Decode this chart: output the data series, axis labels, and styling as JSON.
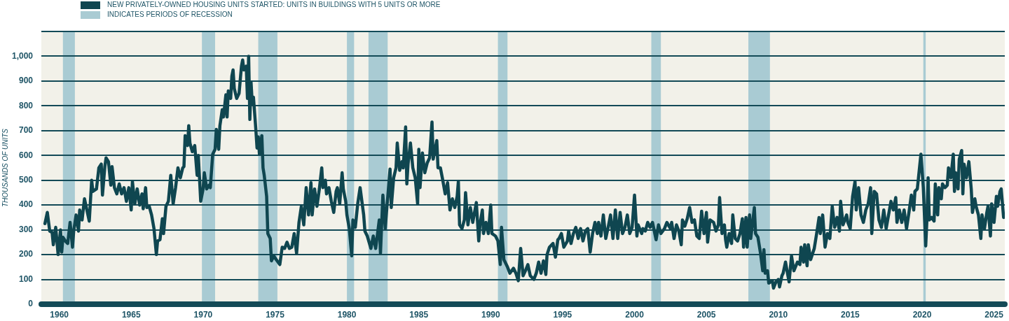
{
  "chart_data": {
    "type": "line",
    "ylabel": "THOUSANDS OF UNITS",
    "x": [
      "1959-01",
      "1959-03",
      "1959-05",
      "1959-07",
      "1959-08",
      "1959-10",
      "1959-12",
      "1960-02",
      "1960-03",
      "1960-04",
      "1960-06",
      "1960-08",
      "1960-10",
      "1960-12",
      "1961-01",
      "1961-03",
      "1961-05",
      "1961-06",
      "1961-08",
      "1961-10",
      "1961-12",
      "1962-02",
      "1962-04",
      "1962-05",
      "1962-08",
      "1962-10",
      "1962-12",
      "1963-01",
      "1963-03",
      "1963-04",
      "1963-06",
      "1963-08",
      "1963-09",
      "1963-11",
      "1964-01",
      "1964-03",
      "1964-05",
      "1964-07",
      "1964-09",
      "1964-11",
      "1965-01",
      "1965-02",
      "1965-04",
      "1965-06",
      "1965-08",
      "1965-10",
      "1965-11",
      "1966-01",
      "1966-02",
      "1966-04",
      "1966-06",
      "1966-08",
      "1966-10",
      "1966-11",
      "1967-01",
      "1967-03",
      "1967-04",
      "1967-06",
      "1967-08",
      "1967-10",
      "1967-12",
      "1968-02",
      "1968-04",
      "1968-06",
      "1968-08",
      "1968-09",
      "1968-10",
      "1968-12",
      "1969-01",
      "1969-02",
      "1969-04",
      "1969-06",
      "1969-08",
      "1969-09",
      "1969-11",
      "1970-01",
      "1970-02",
      "1970-04",
      "1970-06",
      "1970-07",
      "1970-09",
      "1970-11",
      "1970-12",
      "1971-02",
      "1971-03",
      "1971-05",
      "1971-06",
      "1971-08",
      "1971-09",
      "1971-10",
      "1971-12",
      "1972-01",
      "1972-02",
      "1972-03",
      "1972-05",
      "1972-07",
      "1972-09",
      "1972-10",
      "1972-11",
      "1973-01",
      "1973-02",
      "1973-03",
      "1973-04",
      "1973-05",
      "1973-06",
      "1973-07",
      "1973-09",
      "1973-10",
      "1973-11",
      "1973-12",
      "1974-02",
      "1974-03",
      "1974-04",
      "1974-06",
      "1974-07",
      "1974-09",
      "1974-10",
      "1974-12",
      "1975-02",
      "1975-05",
      "1975-07",
      "1975-09",
      "1975-11",
      "1976-01",
      "1976-03",
      "1976-05",
      "1976-07",
      "1976-09",
      "1976-11",
      "1977-01",
      "1977-03",
      "1977-05",
      "1977-07",
      "1977-08",
      "1977-10",
      "1977-12",
      "1978-02",
      "1978-04",
      "1978-05",
      "1978-07",
      "1978-08",
      "1978-10",
      "1978-12",
      "1979-02",
      "1979-04",
      "1979-05",
      "1979-07",
      "1979-09",
      "1979-10",
      "1979-12",
      "1980-01",
      "1980-03",
      "1980-05",
      "1980-06",
      "1980-08",
      "1980-10",
      "1980-12",
      "1981-03",
      "1981-04",
      "1981-06",
      "1981-09",
      "1981-11",
      "1982-01",
      "1982-04",
      "1982-05",
      "1982-07",
      "1982-09",
      "1982-10",
      "1983-01",
      "1983-02",
      "1983-04",
      "1983-06",
      "1983-07",
      "1983-09",
      "1983-11",
      "1983-12",
      "1984-02",
      "1984-03",
      "1984-04",
      "1984-06",
      "1984-08",
      "1984-10",
      "1984-12",
      "1985-01",
      "1985-02",
      "1985-04",
      "1985-06",
      "1985-08",
      "1985-10",
      "1985-12",
      "1986-01",
      "1986-04",
      "1986-05",
      "1986-07",
      "1986-09",
      "1986-11",
      "1987-01",
      "1987-03",
      "1987-05",
      "1987-07",
      "1987-09",
      "1987-10",
      "1987-11",
      "1988-01",
      "1988-03",
      "1988-04",
      "1988-06",
      "1988-08",
      "1988-10",
      "1989-01",
      "1989-03",
      "1989-04",
      "1989-06",
      "1989-07",
      "1989-09",
      "1989-11",
      "1990-01",
      "1990-02",
      "1990-05",
      "1990-07",
      "1990-09",
      "1990-10",
      "1990-12",
      "1991-03",
      "1991-05",
      "1991-08",
      "1991-10",
      "1991-12",
      "1992-01",
      "1992-02",
      "1992-04",
      "1992-06",
      "1992-08",
      "1992-10",
      "1993-01",
      "1993-03",
      "1993-05",
      "1993-07",
      "1993-09",
      "1993-11",
      "1993-12",
      "1994-02",
      "1994-05",
      "1994-07",
      "1994-09",
      "1994-10",
      "1994-12",
      "1995-02",
      "1995-05",
      "1995-06",
      "1995-08",
      "1995-10",
      "1995-12",
      "1996-02",
      "1996-04",
      "1996-06",
      "1996-08",
      "1996-10",
      "1996-12",
      "1997-02",
      "1997-04",
      "1997-06",
      "1997-07",
      "1997-09",
      "1997-11",
      "1998-01",
      "1998-03",
      "1998-05",
      "1998-07",
      "1998-09",
      "1998-11",
      "1999-01",
      "1999-03",
      "1999-05",
      "1999-07",
      "1999-09",
      "1999-11",
      "2000-01",
      "2000-03",
      "2000-04",
      "2000-07",
      "2000-08",
      "2000-10",
      "2000-12",
      "2001-02",
      "2001-04",
      "2001-07",
      "2001-09",
      "2001-11",
      "2002-02",
      "2002-04",
      "2002-07",
      "2002-08",
      "2002-10",
      "2002-12",
      "2003-02",
      "2003-04",
      "2003-05",
      "2003-07",
      "2003-09",
      "2003-11",
      "2004-01",
      "2004-03",
      "2004-05",
      "2004-07",
      "2004-09",
      "2004-11",
      "2005-01",
      "2005-02",
      "2005-04",
      "2005-07",
      "2005-09",
      "2005-11",
      "2005-12",
      "2006-02",
      "2006-04",
      "2006-05",
      "2006-06",
      "2006-08",
      "2006-10",
      "2006-11",
      "2007-01",
      "2007-03",
      "2007-05",
      "2007-07",
      "2007-08",
      "2007-10",
      "2007-11",
      "2008-01",
      "2008-02",
      "2008-05",
      "2008-06",
      "2008-08",
      "2008-10",
      "2008-12",
      "2009-01",
      "2009-02",
      "2009-04",
      "2009-05",
      "2009-08",
      "2009-09",
      "2009-11",
      "2010-01",
      "2010-02",
      "2010-04",
      "2010-05",
      "2010-07",
      "2010-09",
      "2010-10",
      "2010-12",
      "2011-02",
      "2011-05",
      "2011-07",
      "2011-08",
      "2011-10",
      "2011-11",
      "2012-01",
      "2012-02",
      "2012-04",
      "2012-07",
      "2012-09",
      "2012-11",
      "2012-12",
      "2013-02",
      "2013-04",
      "2013-06",
      "2013-08",
      "2013-10",
      "2013-12",
      "2014-02",
      "2014-04",
      "2014-05",
      "2014-07",
      "2014-10",
      "2014-11",
      "2015-01",
      "2015-03",
      "2015-05",
      "2015-06",
      "2015-08",
      "2015-10",
      "2015-12",
      "2016-02",
      "2016-04",
      "2016-06",
      "2016-07",
      "2016-09",
      "2016-11",
      "2017-01",
      "2017-03",
      "2017-05",
      "2017-07",
      "2017-09",
      "2017-11",
      "2018-01",
      "2018-03",
      "2018-04",
      "2018-06",
      "2018-08",
      "2018-10",
      "2018-12",
      "2019-02",
      "2019-04",
      "2019-06",
      "2019-07",
      "2019-09",
      "2019-12",
      "2020-02",
      "2020-04",
      "2020-05",
      "2020-06",
      "2020-07",
      "2020-09",
      "2020-11",
      "2020-12",
      "2021-02",
      "2021-03",
      "2021-05",
      "2021-06",
      "2021-08",
      "2021-10",
      "2021-11",
      "2022-01",
      "2022-03",
      "2022-04",
      "2022-05",
      "2022-07",
      "2022-08",
      "2022-10",
      "2022-11",
      "2022-12",
      "2023-02",
      "2023-04",
      "2023-06",
      "2023-07",
      "2023-09",
      "2023-10",
      "2023-12",
      "2024-02",
      "2024-03",
      "2024-05",
      "2024-07",
      "2024-08",
      "2024-10",
      "2024-11",
      "2025-01",
      "2025-03",
      "2025-04",
      "2025-06",
      "2025-07",
      "2025-09"
    ],
    "series": [
      {
        "name": "NEW PRIVATELY-OWNED HOUSING UNITS STARTED: UNITS IN BUILDINGS WITH 5 UNITS OR MORE",
        "color": "#0f4650",
        "values": [
          325,
          370,
          295,
          290,
          240,
          310,
          200,
          300,
          210,
          270,
          255,
          245,
          330,
          230,
          295,
          360,
          295,
          380,
          340,
          425,
          380,
          335,
          500,
          455,
          465,
          550,
          565,
          440,
          555,
          590,
          575,
          480,
          555,
          470,
          445,
          485,
          445,
          470,
          415,
          470,
          380,
          495,
          405,
          465,
          400,
          445,
          385,
          470,
          390,
          395,
          360,
          305,
          200,
          255,
          260,
          345,
          285,
          395,
          415,
          520,
          405,
          470,
          550,
          510,
          550,
          555,
          680,
          640,
          720,
          650,
          615,
          640,
          520,
          600,
          415,
          465,
          530,
          465,
          480,
          470,
          605,
          625,
          705,
          625,
          720,
          785,
          755,
          845,
          755,
          860,
          830,
          920,
          945,
          870,
          830,
          850,
          960,
          985,
          945,
          960,
          830,
          1000,
          745,
          895,
          810,
          835,
          705,
          630,
          675,
          605,
          680,
          550,
          520,
          435,
          285,
          265,
          175,
          195,
          180,
          160,
          230,
          225,
          250,
          225,
          230,
          285,
          205,
          330,
          395,
          320,
          470,
          360,
          490,
          360,
          465,
          395,
          465,
          550,
          470,
          500,
          445,
          470,
          415,
          370,
          455,
          470,
          405,
          530,
          465,
          415,
          360,
          305,
          195,
          340,
          310,
          405,
          470,
          360,
          295,
          275,
          225,
          275,
          225,
          340,
          205,
          440,
          305,
          370,
          545,
          390,
          510,
          550,
          650,
          540,
          575,
          550,
          715,
          485,
          565,
          650,
          550,
          510,
          405,
          625,
          470,
          610,
          530,
          570,
          590,
          735,
          585,
          660,
          550,
          550,
          500,
          445,
          490,
          380,
          425,
          390,
          435,
          495,
          320,
          305,
          340,
          450,
          320,
          390,
          330,
          410,
          255,
          320,
          380,
          285,
          330,
          285,
          400,
          285,
          275,
          255,
          160,
          310,
          180,
          150,
          125,
          145,
          125,
          95,
          160,
          225,
          115,
          135,
          160,
          115,
          100,
          125,
          170,
          125,
          175,
          120,
          200,
          230,
          245,
          190,
          260,
          265,
          285,
          230,
          255,
          295,
          245,
          285,
          310,
          265,
          305,
          255,
          295,
          305,
          210,
          285,
          330,
          285,
          330,
          275,
          360,
          265,
          310,
          360,
          265,
          380,
          265,
          370,
          285,
          310,
          360,
          285,
          310,
          440,
          275,
          320,
          285,
          305,
          295,
          330,
          310,
          330,
          260,
          320,
          285,
          305,
          330,
          305,
          330,
          265,
          320,
          295,
          240,
          340,
          315,
          345,
          390,
          330,
          340,
          275,
          265,
          375,
          285,
          370,
          250,
          340,
          330,
          295,
          320,
          430,
          285,
          320,
          260,
          230,
          285,
          245,
          360,
          265,
          255,
          285,
          345,
          230,
          350,
          230,
          360,
          265,
          390,
          285,
          270,
          210,
          135,
          220,
          125,
          135,
          85,
          95,
          65,
          90,
          100,
          70,
          115,
          125,
          170,
          115,
          90,
          195,
          135,
          170,
          160,
          230,
          170,
          240,
          155,
          240,
          180,
          225,
          285,
          350,
          285,
          360,
          230,
          285,
          265,
          395,
          310,
          350,
          295,
          415,
          320,
          360,
          330,
          305,
          435,
          495,
          380,
          470,
          360,
          330,
          380,
          405,
          470,
          285,
          455,
          445,
          340,
          310,
          380,
          305,
          360,
          415,
          380,
          430,
          330,
          380,
          330,
          380,
          305,
          370,
          440,
          380,
          455,
          465,
          605,
          470,
          235,
          340,
          510,
          340,
          350,
          335,
          485,
          360,
          470,
          425,
          485,
          470,
          480,
          550,
          510,
          605,
          455,
          530,
          465,
          585,
          620,
          445,
          565,
          510,
          575,
          465,
          370,
          425,
          395,
          360,
          265,
          360,
          305,
          370,
          395,
          275,
          405,
          330,
          435,
          395,
          455,
          465,
          350
        ]
      }
    ],
    "xlim": [
      "1958-10",
      "2025-10"
    ],
    "xticks": [
      "1960",
      "1965",
      "1970",
      "1975",
      "1980",
      "1985",
      "1990",
      "1995",
      "2000",
      "2005",
      "2010",
      "2015",
      "2020",
      "2025"
    ],
    "ylim": [
      0,
      1100
    ],
    "yticks": [
      0,
      100,
      200,
      300,
      400,
      500,
      600,
      700,
      800,
      900,
      {
        "value": 1000,
        "label": "1,000"
      },
      {
        "value": 1100,
        "label": null
      }
    ],
    "bands": [
      {
        "axis": "x",
        "from": "1960-04",
        "to": "1961-02",
        "color": "#a9cbd3",
        "label": "INDICATES PERIODS OF RECESSION"
      },
      {
        "axis": "x",
        "from": "1969-12",
        "to": "1970-11",
        "color": "#a9cbd3"
      },
      {
        "axis": "x",
        "from": "1973-11",
        "to": "1975-03",
        "color": "#a9cbd3"
      },
      {
        "axis": "x",
        "from": "1980-01",
        "to": "1980-07",
        "color": "#a9cbd3"
      },
      {
        "axis": "x",
        "from": "1981-07",
        "to": "1982-11",
        "color": "#a9cbd3"
      },
      {
        "axis": "x",
        "from": "1990-07",
        "to": "1991-03",
        "color": "#a9cbd3"
      },
      {
        "axis": "x",
        "from": "2001-03",
        "to": "2001-11",
        "color": "#a9cbd3"
      },
      {
        "axis": "x",
        "from": "2007-12",
        "to": "2009-06",
        "color": "#a9cbd3"
      },
      {
        "axis": "x",
        "from": "2020-02",
        "to": "2020-04",
        "color": "#a9cbd3"
      }
    ],
    "grid": "y",
    "legend": "top left",
    "marker": "none",
    "line_style": "solid"
  }
}
